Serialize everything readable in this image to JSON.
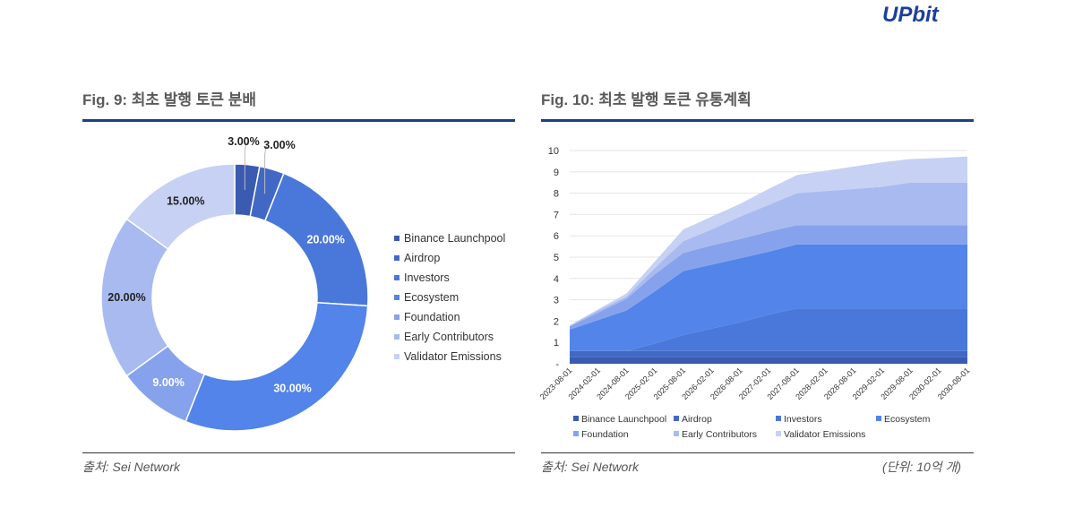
{
  "logo": "UPbit",
  "fig9": {
    "title": "Fig. 9: 최초 발행 토큰 분배",
    "source": "출처: Sei Network"
  },
  "fig10": {
    "title": "Fig. 10: 최초 발행 토큰 유통계획",
    "source": "출처: Sei Network",
    "unit": "(단위: 10억 개)"
  },
  "chart_data": [
    {
      "type": "pie",
      "subtype": "donut",
      "title": "Fig. 9: 최초 발행 토큰 분배",
      "labels": [
        "Binance Launchpool",
        "Airdrop",
        "Investors",
        "Ecosystem",
        "Foundation",
        "Early Contributors",
        "Validator Emissions"
      ],
      "values": [
        3,
        3,
        20,
        30,
        9,
        20,
        15
      ],
      "data_labels": [
        "3.00%",
        "3.00%",
        "20.00%",
        "30.00%",
        "9.00%",
        "20.00%",
        "15.00%"
      ],
      "colors": [
        "#3a5bb0",
        "#4268c6",
        "#4a78da",
        "#5284ea",
        "#87a2ec",
        "#a9baf0",
        "#c6d1f4"
      ],
      "legend": "right"
    },
    {
      "type": "area",
      "stacked": true,
      "title": "Fig. 10: 최초 발행 토큰 유통계획",
      "x": [
        "2023-08-01",
        "2024-02-01",
        "2024-08-01",
        "2025-02-01",
        "2025-08-01",
        "2026-02-01",
        "2026-08-01",
        "2027-02-01",
        "2027-08-01",
        "2028-02-01",
        "2028-08-01",
        "2029-02-01",
        "2029-08-01",
        "2030-02-01",
        "2030-08-01"
      ],
      "yticks": [
        "-",
        "1",
        "2",
        "3",
        "4",
        "5",
        "6",
        "7",
        "8",
        "9",
        "10"
      ],
      "ylim": [
        0,
        10
      ],
      "ylabel": "(단위: 10억 개)",
      "grid": true,
      "legend": "bottom",
      "series": [
        {
          "name": "Binance Launchpool",
          "color": "#3a5bb0",
          "values": [
            0.3,
            0.3,
            0.3,
            0.3,
            0.3,
            0.3,
            0.3,
            0.3,
            0.3,
            0.3,
            0.3,
            0.3,
            0.3,
            0.3,
            0.3
          ]
        },
        {
          "name": "Airdrop",
          "color": "#4268c6",
          "values": [
            0.3,
            0.3,
            0.3,
            0.3,
            0.3,
            0.3,
            0.3,
            0.3,
            0.3,
            0.3,
            0.3,
            0.3,
            0.3,
            0.3,
            0.3
          ]
        },
        {
          "name": "Investors",
          "color": "#4a78da",
          "values": [
            0,
            0,
            0,
            0.35,
            0.75,
            1.05,
            1.35,
            1.7,
            2.0,
            2.0,
            2.0,
            2.0,
            2.0,
            2.0,
            2.0
          ]
        },
        {
          "name": "Ecosystem",
          "color": "#5284ea",
          "values": [
            1.0,
            1.45,
            1.9,
            2.45,
            3.0,
            3.0,
            3.0,
            2.95,
            3.0,
            3.0,
            3.0,
            3.0,
            3.0,
            3.0,
            3.0
          ]
        },
        {
          "name": "Foundation",
          "color": "#87a2ec",
          "values": [
            0.15,
            0.35,
            0.55,
            0.8,
            0.85,
            0.9,
            0.9,
            0.95,
            0.9,
            0.9,
            0.9,
            0.9,
            0.9,
            0.9,
            0.9
          ]
        },
        {
          "name": "Early Contributors",
          "color": "#a9baf0",
          "values": [
            0.03,
            0.1,
            0.1,
            0.3,
            0.55,
            0.75,
            1.05,
            1.25,
            1.5,
            1.6,
            1.7,
            1.8,
            2.0,
            2.0,
            2.0
          ]
        },
        {
          "name": "Validator Emissions",
          "color": "#c6d1f4",
          "values": [
            0.02,
            0.05,
            0.15,
            0.3,
            0.55,
            0.6,
            0.6,
            0.75,
            0.85,
            0.95,
            1.05,
            1.15,
            1.1,
            1.15,
            1.22
          ]
        }
      ]
    }
  ]
}
